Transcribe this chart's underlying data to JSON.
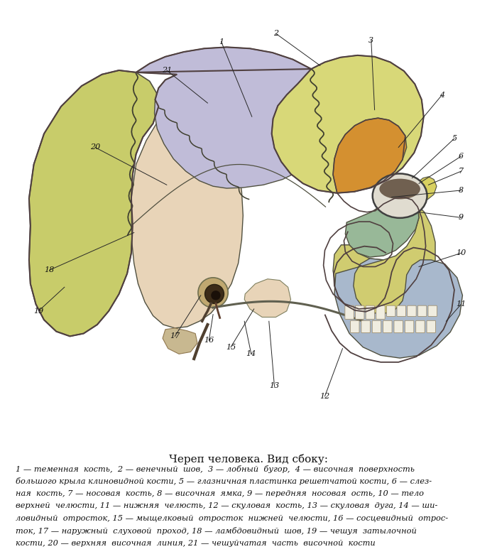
{
  "title": "Череп человека. Вид сбоку:",
  "caption_title_fontsize": 11,
  "caption_body_fontsize": 8.2,
  "caption_lines": [
    "1 — теменная  кость,  2 — венечный  шов,  3 — лобный  бугор,  4 — височная  поверхность",
    "большого крыла клиновидной кости, 5 — глазничная пластинка решетчатой кости, 6 — слез-",
    "ная  кость, 7 — носовая  кость, 8 — височная  ямка, 9 — передняя  носовая  ость, 10 — тело",
    "верхней  челюсти, 11 — нижняя  челюсть, 12 — скуловая  кость, 13 — скуловая  дуга, 14 — ши-",
    "ловидный  отросток, 15 — мыщелковый  отросток  нижней  челюсти, 16 — сосцевидный  отрос-",
    "ток, 17 — наружный  слуховой  проход, 18 — ламбдовидный  шов, 19 — чешуя  затылочной",
    "кости, 20 — верхняя  височная  линия, 21 — чешуйчатая  часть  височной  кости"
  ],
  "bg_color": "#ffffff",
  "fig_width": 7.0,
  "fig_height": 7.87,
  "colors": {
    "parietal": "#c0bcd8",
    "frontal": "#d8d878",
    "occipital_squama": "#c8cc6a",
    "temporal": "#e8d4b8",
    "sphenoid_wing": "#d49030",
    "zygomatic": "#98b898",
    "maxilla": "#d0cc70",
    "mandible": "#a8b8cc",
    "nasal": "#d8d060",
    "lacrimal": "#d0c870",
    "ethmoid": "#b0b8c0",
    "outline": "#505040",
    "suture": "#404040",
    "annot_line": "#282828"
  }
}
